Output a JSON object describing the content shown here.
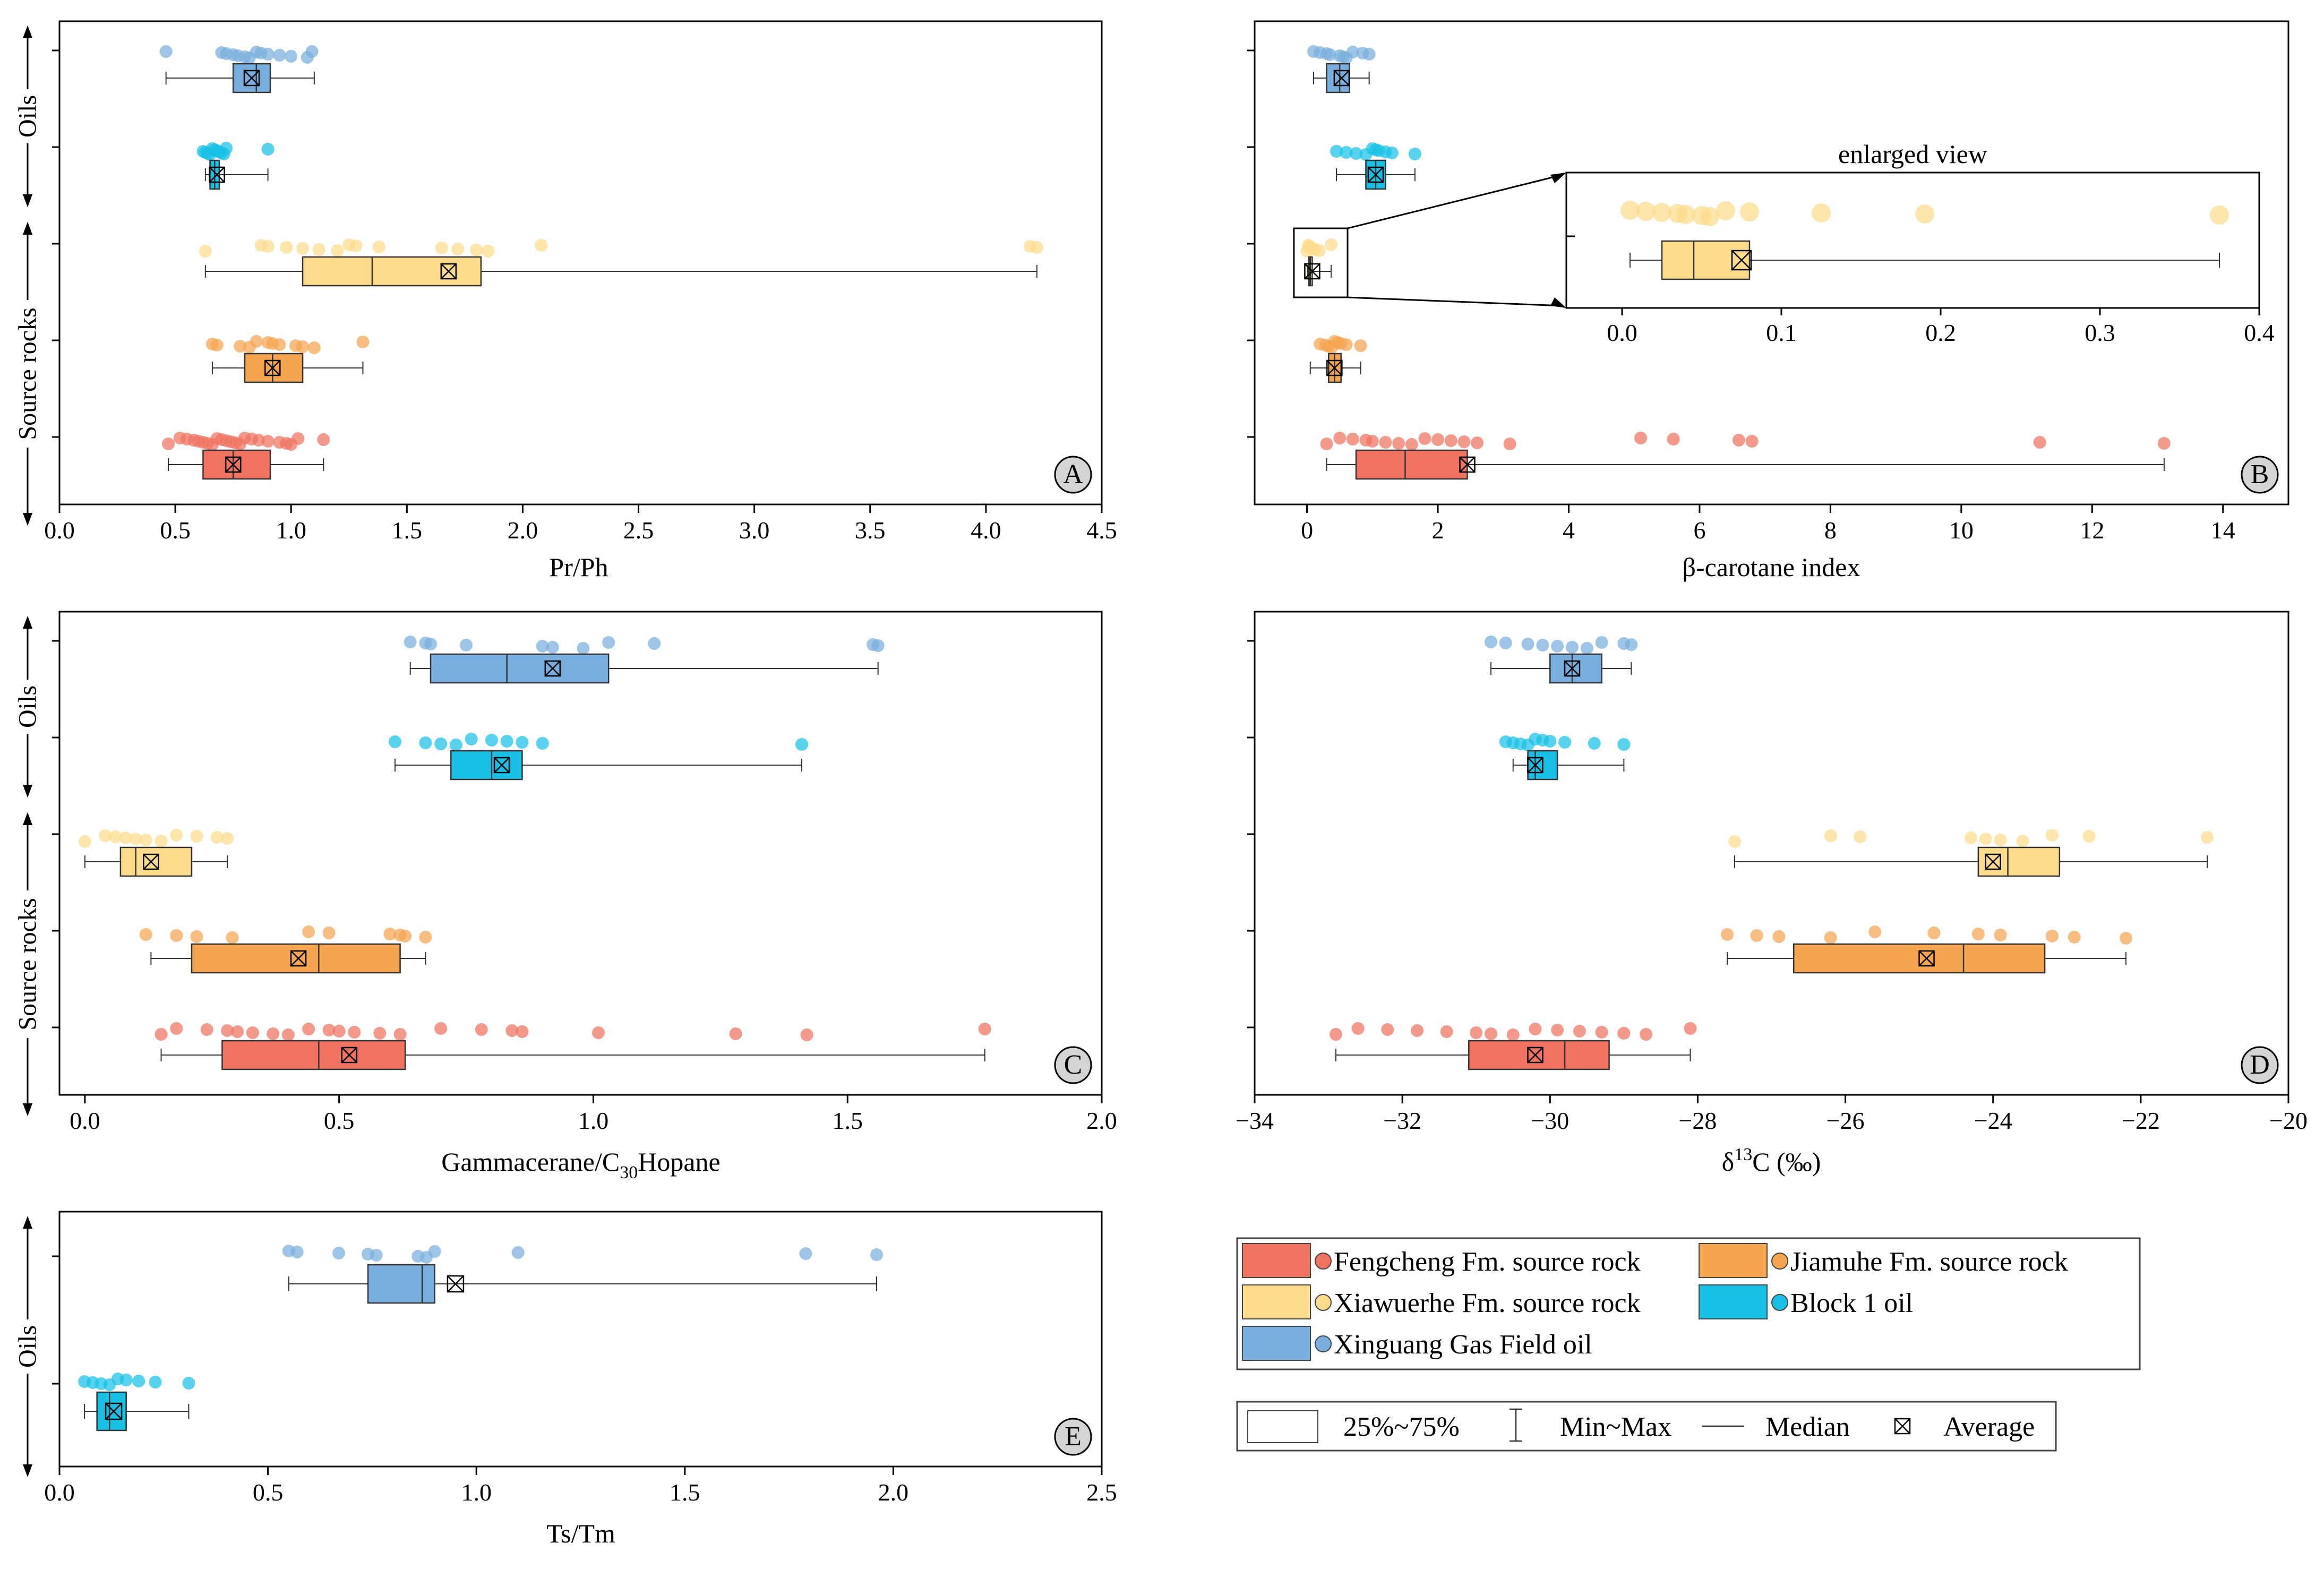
{
  "colors": {
    "fengcheng": "#f07361",
    "jiamuhe": "#f5a550",
    "xiawuerhe": "#fcdc8a",
    "block1": "#18c0e6",
    "xinguang": "#78aedd"
  },
  "side_labels": {
    "oils": "Oils",
    "source_rocks": "Source rocks"
  },
  "legend": {
    "items": [
      {
        "key": "fengcheng",
        "label": "Fengcheng Fm. source rock"
      },
      {
        "key": "jiamuhe",
        "label": "Jiamuhe Fm. source rock"
      },
      {
        "key": "xiawuerhe",
        "label": "Xiawuerhe Fm. source rock"
      },
      {
        "key": "block1",
        "label": "Block 1 oil"
      },
      {
        "key": "xinguang",
        "label": "Xinguang Gas Field oil"
      }
    ],
    "stats": {
      "box": "25%~75%",
      "whisker": "Min~Max",
      "median": "Median",
      "average": "Average"
    }
  },
  "chart_data": [
    {
      "id": "A",
      "type": "box",
      "xlabel": "Pr/Ph",
      "xlim": [
        0,
        4.5
      ],
      "ticks": [
        0,
        0.5,
        1.0,
        1.5,
        2.0,
        2.5,
        3.0,
        3.5,
        4.0,
        4.5
      ],
      "tick_labels": [
        "0.0",
        "0.5",
        "1.0",
        "1.5",
        "2.0",
        "2.5",
        "3.0",
        "3.5",
        "4.0",
        "4.5"
      ],
      "series": [
        {
          "key": "xinguang",
          "min": 0.46,
          "q1": 0.75,
          "median": 0.85,
          "q3": 0.91,
          "max": 1.1,
          "mean": 0.83,
          "points": [
            0.46,
            0.7,
            0.72,
            0.75,
            0.77,
            0.8,
            0.82,
            0.85,
            0.87,
            0.9,
            0.95,
            1.0,
            1.07,
            1.09
          ]
        },
        {
          "key": "block1",
          "min": 0.63,
          "q1": 0.65,
          "median": 0.67,
          "q3": 0.69,
          "max": 0.9,
          "mean": 0.68,
          "points": [
            0.62,
            0.63,
            0.64,
            0.65,
            0.66,
            0.67,
            0.68,
            0.69,
            0.7,
            0.71,
            0.72,
            0.9
          ]
        },
        {
          "key": "xiawuerhe",
          "min": 0.63,
          "q1": 1.05,
          "median": 1.35,
          "q3": 1.82,
          "max": 4.22,
          "mean": 1.68,
          "points": [
            0.63,
            0.87,
            0.9,
            0.98,
            1.05,
            1.12,
            1.2,
            1.25,
            1.28,
            1.38,
            1.65,
            1.72,
            1.8,
            1.85,
            2.08,
            4.19,
            4.22
          ]
        },
        {
          "key": "jiamuhe",
          "min": 0.66,
          "q1": 0.8,
          "median": 0.92,
          "q3": 1.05,
          "max": 1.31,
          "mean": 0.92,
          "points": [
            0.66,
            0.68,
            0.78,
            0.82,
            0.85,
            0.9,
            0.92,
            0.95,
            1.02,
            1.05,
            1.1,
            1.31
          ]
        },
        {
          "key": "fengcheng",
          "min": 0.47,
          "q1": 0.62,
          "median": 0.75,
          "q3": 0.91,
          "max": 1.14,
          "mean": 0.75,
          "points": [
            0.47,
            0.52,
            0.55,
            0.58,
            0.6,
            0.62,
            0.64,
            0.66,
            0.68,
            0.7,
            0.72,
            0.74,
            0.76,
            0.78,
            0.8,
            0.83,
            0.86,
            0.9,
            0.95,
            0.98,
            1.0,
            1.03,
            1.14
          ]
        }
      ]
    },
    {
      "id": "B",
      "type": "box",
      "xlabel": "β-carotane index",
      "xlim": [
        -0.8,
        15
      ],
      "ticks": [
        0,
        2,
        4,
        6,
        8,
        10,
        12,
        14
      ],
      "tick_labels": [
        "0",
        "2",
        "4",
        "6",
        "8",
        "10",
        "12",
        "14"
      ],
      "series": [
        {
          "key": "xinguang",
          "min": 0.1,
          "q1": 0.3,
          "median": 0.5,
          "q3": 0.65,
          "max": 0.95,
          "mean": 0.53,
          "points": [
            0.1,
            0.2,
            0.3,
            0.35,
            0.5,
            0.55,
            0.6,
            0.7,
            0.85,
            0.95
          ]
        },
        {
          "key": "block1",
          "min": 0.45,
          "q1": 0.9,
          "median": 1.05,
          "q3": 1.2,
          "max": 1.65,
          "mean": 1.05,
          "points": [
            0.45,
            0.6,
            0.75,
            0.9,
            1.0,
            1.05,
            1.1,
            1.2,
            1.3,
            1.65
          ]
        },
        {
          "key": "xiawuerhe",
          "min": 0.01,
          "q1": 0.03,
          "median": 0.05,
          "q3": 0.08,
          "max": 0.37,
          "mean": 0.08,
          "points": [
            0.0,
            0.02,
            0.03,
            0.05,
            0.08,
            0.12,
            0.19,
            0.37
          ]
        },
        {
          "key": "jiamuhe",
          "min": 0.05,
          "q1": 0.33,
          "median": 0.42,
          "q3": 0.52,
          "max": 0.82,
          "mean": 0.42,
          "points": [
            0.2,
            0.28,
            0.33,
            0.38,
            0.42,
            0.47,
            0.52,
            0.6,
            0.82
          ]
        },
        {
          "key": "fengcheng",
          "min": 0.3,
          "q1": 0.75,
          "median": 1.5,
          "q3": 2.45,
          "max": 13.1,
          "mean": 2.45,
          "points": [
            0.3,
            0.5,
            0.7,
            0.9,
            1.0,
            1.2,
            1.4,
            1.6,
            1.8,
            2.0,
            2.2,
            2.4,
            2.6,
            3.1,
            5.1,
            5.6,
            6.6,
            6.8,
            11.2,
            13.1
          ]
        }
      ],
      "inset": {
        "title": "enlarged view",
        "xlim": [
          -0.035,
          0.4
        ],
        "ticks": [
          0,
          0.1,
          0.2,
          0.3,
          0.4
        ],
        "tick_labels": [
          "0.0",
          "0.1",
          "0.2",
          "0.3",
          "0.4"
        ],
        "series_key": "xiawuerhe",
        "min": 0.005,
        "q1": 0.025,
        "median": 0.045,
        "q3": 0.08,
        "max": 0.375,
        "mean": 0.075,
        "points": [
          0.005,
          0.015,
          0.025,
          0.035,
          0.04,
          0.05,
          0.055,
          0.065,
          0.08,
          0.125,
          0.19,
          0.375
        ]
      }
    },
    {
      "id": "C",
      "type": "box",
      "xlabel_parts": [
        "Gammacerane/C",
        "30",
        "Hopane"
      ],
      "xlim": [
        -0.05,
        2.0
      ],
      "ticks": [
        0,
        0.5,
        1.0,
        1.5,
        2.0
      ],
      "tick_labels": [
        "0.0",
        "0.5",
        "1.0",
        "1.5",
        "2.0"
      ],
      "series": [
        {
          "key": "xinguang",
          "min": 0.64,
          "q1": 0.68,
          "median": 0.83,
          "q3": 1.03,
          "max": 1.56,
          "mean": 0.92,
          "points": [
            0.64,
            0.67,
            0.68,
            0.75,
            0.9,
            0.92,
            0.98,
            1.03,
            1.12,
            1.55,
            1.56
          ]
        },
        {
          "key": "block1",
          "min": 0.61,
          "q1": 0.72,
          "median": 0.8,
          "q3": 0.86,
          "max": 1.41,
          "mean": 0.82,
          "points": [
            0.61,
            0.67,
            0.7,
            0.73,
            0.76,
            0.8,
            0.83,
            0.86,
            0.9,
            1.41
          ]
        },
        {
          "key": "xiawuerhe",
          "min": 0.0,
          "q1": 0.07,
          "median": 0.1,
          "q3": 0.21,
          "max": 0.28,
          "mean": 0.13,
          "points": [
            0.0,
            0.04,
            0.06,
            0.08,
            0.1,
            0.12,
            0.15,
            0.18,
            0.22,
            0.26,
            0.28
          ]
        },
        {
          "key": "jiamuhe",
          "min": 0.13,
          "q1": 0.21,
          "median": 0.46,
          "q3": 0.62,
          "max": 0.67,
          "mean": 0.42,
          "points": [
            0.12,
            0.18,
            0.22,
            0.29,
            0.44,
            0.48,
            0.6,
            0.62,
            0.63,
            0.67
          ]
        },
        {
          "key": "fengcheng",
          "min": 0.15,
          "q1": 0.27,
          "median": 0.46,
          "q3": 0.63,
          "max": 1.77,
          "mean": 0.52,
          "points": [
            0.15,
            0.18,
            0.24,
            0.28,
            0.3,
            0.33,
            0.37,
            0.4,
            0.44,
            0.48,
            0.5,
            0.53,
            0.58,
            0.62,
            0.7,
            0.78,
            0.84,
            0.86,
            1.01,
            1.28,
            1.42,
            1.77
          ]
        }
      ]
    },
    {
      "id": "D",
      "type": "box",
      "xlabel_parts": [
        "δ",
        "13",
        "C (‰)"
      ],
      "xlim": [
        -34,
        -20
      ],
      "ticks": [
        -34,
        -32,
        -30,
        -28,
        -26,
        -24,
        -22,
        -20
      ],
      "tick_labels": [
        "−34",
        "−32",
        "−30",
        "−28",
        "−26",
        "−24",
        "−22",
        "−20"
      ],
      "series": [
        {
          "key": "xinguang",
          "min": -30.8,
          "q1": -30.0,
          "median": -29.7,
          "q3": -29.3,
          "max": -28.9,
          "mean": -29.7,
          "points": [
            -30.8,
            -30.6,
            -30.3,
            -30.1,
            -29.9,
            -29.7,
            -29.5,
            -29.3,
            -29.0,
            -28.9
          ]
        },
        {
          "key": "block1",
          "min": -30.5,
          "q1": -30.3,
          "median": -30.2,
          "q3": -29.9,
          "max": -29.0,
          "mean": -30.2,
          "points": [
            -30.6,
            -30.5,
            -30.4,
            -30.3,
            -30.2,
            -30.1,
            -30.0,
            -29.8,
            -29.4,
            -29.0
          ]
        },
        {
          "key": "xiawuerhe",
          "min": -27.5,
          "q1": -24.2,
          "median": -23.8,
          "q3": -23.1,
          "max": -21.1,
          "mean": -24.0,
          "points": [
            -27.5,
            -26.2,
            -25.8,
            -24.3,
            -24.1,
            -23.9,
            -23.6,
            -23.2,
            -22.7,
            -21.1
          ]
        },
        {
          "key": "jiamuhe",
          "min": -27.6,
          "q1": -26.7,
          "median": -24.4,
          "q3": -23.3,
          "max": -22.2,
          "mean": -24.9,
          "points": [
            -27.6,
            -27.2,
            -26.9,
            -26.2,
            -25.6,
            -24.8,
            -24.2,
            -23.9,
            -23.2,
            -22.9,
            -22.2
          ]
        },
        {
          "key": "fengcheng",
          "min": -32.9,
          "q1": -31.1,
          "median": -29.8,
          "q3": -29.2,
          "max": -28.1,
          "mean": -30.2,
          "points": [
            -32.9,
            -32.6,
            -32.2,
            -31.8,
            -31.4,
            -31.0,
            -30.8,
            -30.5,
            -30.2,
            -29.9,
            -29.6,
            -29.3,
            -29.0,
            -28.7,
            -28.1
          ]
        }
      ]
    },
    {
      "id": "E",
      "type": "box",
      "xlabel": "Ts/Tm",
      "xlim": [
        0,
        2.5
      ],
      "ticks": [
        0,
        0.5,
        1.0,
        1.5,
        2.0,
        2.5
      ],
      "tick_labels": [
        "0.0",
        "0.5",
        "1.0",
        "1.5",
        "2.0",
        "2.5"
      ],
      "series": [
        {
          "key": "xinguang",
          "min": 0.55,
          "q1": 0.74,
          "median": 0.87,
          "q3": 0.9,
          "max": 1.96,
          "mean": 0.95,
          "points": [
            0.55,
            0.57,
            0.67,
            0.74,
            0.76,
            0.86,
            0.88,
            0.9,
            1.1,
            1.79,
            1.96
          ]
        },
        {
          "key": "block1",
          "min": 0.06,
          "q1": 0.09,
          "median": 0.12,
          "q3": 0.16,
          "max": 0.31,
          "mean": 0.13,
          "points": [
            0.06,
            0.08,
            0.1,
            0.12,
            0.14,
            0.16,
            0.19,
            0.23,
            0.31
          ]
        }
      ]
    }
  ]
}
